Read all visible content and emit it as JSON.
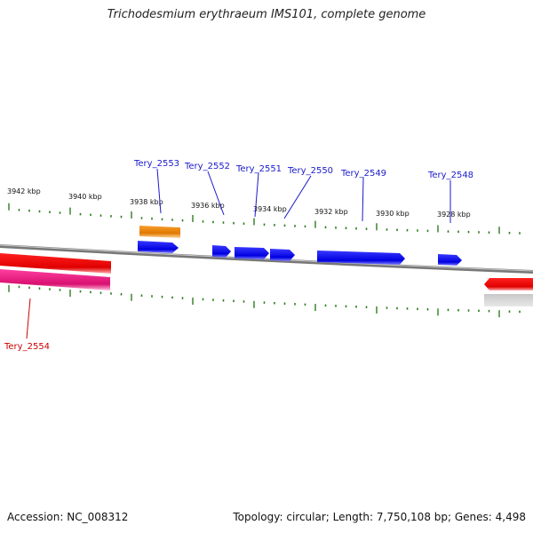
{
  "title": "Trichodesmium erythraeum IMS101, complete genome",
  "footer": {
    "accession": "Accession: NC_008312",
    "summary": "Topology: circular; Length: 7,750,108 bp; Genes: 4,498"
  },
  "colors": {
    "backbone": "#8c8c8c",
    "tick": "#2e7d1e",
    "forward_gene": "#0a0ae6",
    "forward_label": "#1a1acc",
    "reverse_gene": "#ee0000",
    "reverse_label": "#cc0000",
    "pink_gene": "#e8157a",
    "orange_gene": "#f08a00",
    "gray_gene": "#b8b8b8"
  },
  "axis": {
    "unit": "kbp",
    "labels": [
      "3942 kbp",
      "3940 kbp",
      "3938 kbp",
      "3936 kbp",
      "3934 kbp",
      "3932 kbp",
      "3930 kbp",
      "3928 kbp"
    ]
  },
  "genes": [
    {
      "name": "Tery_2553",
      "strand": "forward"
    },
    {
      "name": "Tery_2552",
      "strand": "forward"
    },
    {
      "name": "Tery_2551",
      "strand": "forward"
    },
    {
      "name": "Tery_2550",
      "strand": "forward"
    },
    {
      "name": "Tery_2549",
      "strand": "forward"
    },
    {
      "name": "Tery_2548",
      "strand": "forward"
    },
    {
      "name": "Tery_2554",
      "strand": "reverse"
    }
  ]
}
